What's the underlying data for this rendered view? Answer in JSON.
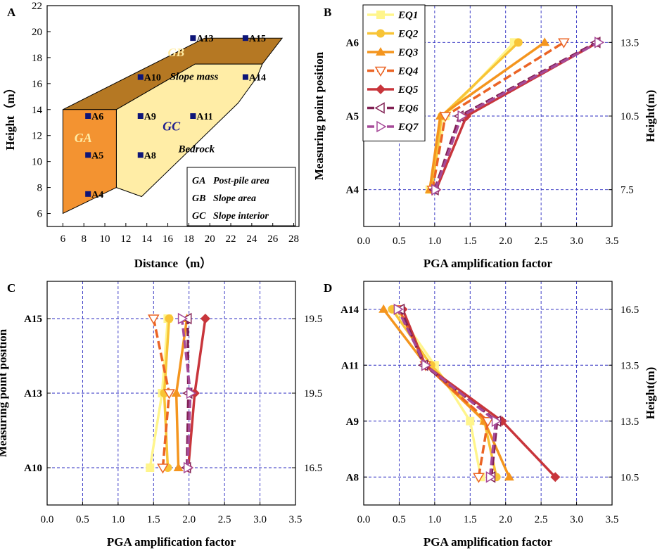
{
  "panel_a": {
    "letter": "A",
    "chart_type": "diagram",
    "xlabel": "Distance（m）",
    "ylabel": "Height（m）",
    "xticks": [
      6,
      8,
      10,
      12,
      14,
      16,
      18,
      20,
      22,
      24,
      26,
      28
    ],
    "yticks": [
      6,
      8,
      10,
      12,
      14,
      16,
      18,
      20,
      22
    ],
    "xlim": [
      4.5,
      28.5
    ],
    "ylim": [
      5,
      22
    ],
    "regions": {
      "ga": {
        "label": "GA",
        "color": "#F39331",
        "outline": [
          [
            6,
            14
          ],
          [
            11.1,
            14
          ],
          [
            11.1,
            8
          ],
          [
            6,
            6
          ]
        ]
      },
      "gb": {
        "label": "GB",
        "color": "#B57823",
        "outline": [
          [
            6,
            14
          ],
          [
            19.5,
            19.5
          ],
          [
            26.9,
            19.5
          ],
          [
            25,
            17.5
          ],
          [
            18.6,
            17.5
          ],
          [
            11.1,
            14
          ]
        ]
      },
      "gc": {
        "label": "GC",
        "color": "#FFEDA6",
        "outline": [
          [
            11.1,
            14
          ],
          [
            18.6,
            17.5
          ],
          [
            25,
            17.5
          ],
          [
            24.5,
            16.5
          ],
          [
            22.7,
            14.5
          ],
          [
            13.5,
            7.3
          ],
          [
            11.1,
            8
          ]
        ]
      }
    },
    "slope_mass_label": "Slope mass",
    "bedrock_label": "Bedrock",
    "points": [
      {
        "id": "A4",
        "x": 8.4,
        "y": 7.5
      },
      {
        "id": "A5",
        "x": 8.4,
        "y": 10.5
      },
      {
        "id": "A6",
        "x": 8.4,
        "y": 13.5
      },
      {
        "id": "A8",
        "x": 13.4,
        "y": 10.5
      },
      {
        "id": "A9",
        "x": 13.4,
        "y": 13.5
      },
      {
        "id": "A10",
        "x": 13.4,
        "y": 16.5
      },
      {
        "id": "A11",
        "x": 18.4,
        "y": 13.5
      },
      {
        "id": "A13",
        "x": 18.4,
        "y": 19.5
      },
      {
        "id": "A14",
        "x": 23.4,
        "y": 16.5
      },
      {
        "id": "A15",
        "x": 23.4,
        "y": 19.5
      }
    ],
    "legend": [
      {
        "key": "GA",
        "text": "Post-pile area"
      },
      {
        "key": "GB",
        "text": "Slope area"
      },
      {
        "key": "GC",
        "text": "Slope interior"
      }
    ]
  },
  "series_styles": [
    {
      "name": "EQ1",
      "color": "#FFF58C",
      "marker": "square",
      "dashed": false
    },
    {
      "name": "EQ2",
      "color": "#F8C436",
      "marker": "circle",
      "dashed": false
    },
    {
      "name": "EQ3",
      "color": "#F4951E",
      "marker": "triangle-up",
      "dashed": false
    },
    {
      "name": "EQ4",
      "color": "#EB6425",
      "marker": "triangle-down",
      "dashed": true
    },
    {
      "name": "EQ5",
      "color": "#C8353B",
      "marker": "diamond",
      "dashed": false
    },
    {
      "name": "EQ6",
      "color": "#812154",
      "marker": "triangle-left",
      "dashed": true
    },
    {
      "name": "EQ7",
      "color": "#A64A98",
      "marker": "triangle-right",
      "dashed": true
    }
  ],
  "chart_data": [
    {
      "panel": "B",
      "type": "line",
      "ylabel": "Measuring point position",
      "xlabel": "PGA amplification factor",
      "right_label": "Height(m)",
      "positions": [
        "A4",
        "A5",
        "A6"
      ],
      "right_ticks": [
        "7.5",
        "10.5",
        "13.5"
      ],
      "xlim": [
        0,
        3.5
      ],
      "xticks": [
        "0.0",
        "0.5",
        "1.0",
        "1.5",
        "2.0",
        "2.5",
        "3.0",
        "3.5"
      ],
      "legend": true,
      "series": [
        {
          "name": "EQ1",
          "values": [
            0.93,
            1.15,
            2.12
          ]
        },
        {
          "name": "EQ2",
          "values": [
            0.96,
            1.1,
            2.18
          ]
        },
        {
          "name": "EQ3",
          "values": [
            0.93,
            1.08,
            2.55
          ]
        },
        {
          "name": "EQ4",
          "values": [
            0.97,
            1.15,
            2.82
          ]
        },
        {
          "name": "EQ5",
          "values": [
            1.02,
            1.45,
            3.3
          ]
        },
        {
          "name": "EQ6",
          "values": [
            1.0,
            1.35,
            3.28
          ]
        },
        {
          "name": "EQ7",
          "values": [
            1.01,
            1.38,
            3.31
          ]
        }
      ]
    },
    {
      "panel": "C",
      "type": "line",
      "ylabel": "Measuring point position",
      "xlabel": "PGA amplification factor",
      "right_label": "",
      "positions": [
        "A10",
        "A13",
        "A15"
      ],
      "right_ticks": [
        "16.5",
        "19.5",
        "19.5"
      ],
      "xlim": [
        0,
        3.5
      ],
      "xticks": [
        "0.0",
        "0.5",
        "1.0",
        "1.5",
        "2.0",
        "2.5",
        "3.0",
        "3.5"
      ],
      "legend": false,
      "series": [
        {
          "name": "EQ1",
          "values": [
            1.45,
            1.62,
            1.7
          ]
        },
        {
          "name": "EQ2",
          "values": [
            1.7,
            1.65,
            1.72
          ]
        },
        {
          "name": "EQ3",
          "values": [
            1.85,
            1.82,
            1.97
          ]
        },
        {
          "name": "EQ4",
          "values": [
            1.63,
            1.72,
            1.5
          ]
        },
        {
          "name": "EQ5",
          "values": [
            1.99,
            2.08,
            2.23
          ]
        },
        {
          "name": "EQ6",
          "values": [
            1.97,
            1.99,
            1.98
          ]
        },
        {
          "name": "EQ7",
          "values": [
            1.98,
            2.02,
            1.9
          ]
        }
      ]
    },
    {
      "panel": "D",
      "type": "line",
      "ylabel": "",
      "xlabel": "PGA amplification factor",
      "right_label": "Height(m)",
      "positions": [
        "A8",
        "A9",
        "A11",
        "A14"
      ],
      "right_ticks": [
        "10.5",
        "13.5",
        "13.5",
        "16.5"
      ],
      "xlim": [
        0,
        3.5
      ],
      "xticks": [
        "0.0",
        "0.5",
        "1.0",
        "1.5",
        "2.0",
        "2.5",
        "3.0",
        "3.5"
      ],
      "legend": false,
      "series": [
        {
          "name": "EQ1",
          "values": [
            1.65,
            1.5,
            1.0,
            0.45
          ]
        },
        {
          "name": "EQ2",
          "values": [
            1.87,
            1.7,
            0.95,
            0.4
          ]
        },
        {
          "name": "EQ3",
          "values": [
            2.05,
            1.7,
            0.88,
            0.28
          ]
        },
        {
          "name": "EQ4",
          "values": [
            1.62,
            1.75,
            0.87,
            0.5
          ]
        },
        {
          "name": "EQ5",
          "values": [
            2.7,
            1.95,
            0.87,
            0.55
          ]
        },
        {
          "name": "EQ6",
          "values": [
            1.8,
            1.88,
            0.85,
            0.52
          ]
        },
        {
          "name": "EQ7",
          "values": [
            1.78,
            1.86,
            0.87,
            0.48
          ]
        }
      ]
    }
  ]
}
